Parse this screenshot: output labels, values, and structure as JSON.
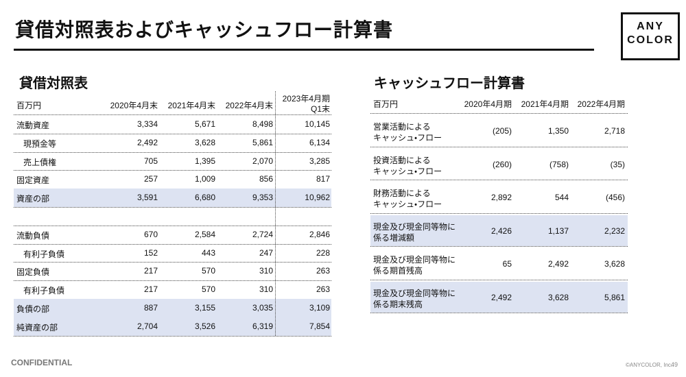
{
  "header": {
    "title": "貸借対照表およびキャッシュフロー計算書",
    "logo": [
      "ANY",
      "COLOR"
    ]
  },
  "balance_sheet": {
    "title": "貸借対照表",
    "columns": [
      "百万円",
      "2020年4月末",
      "2021年4月末",
      "2022年4月末",
      [
        "2023年4月期",
        "Q1末"
      ]
    ],
    "groups": [
      [
        {
          "cells": [
            "流動資産",
            "3,334",
            "5,671",
            "8,498",
            "10,145"
          ]
        },
        {
          "cells": [
            "現預金等",
            "2,492",
            "3,628",
            "5,861",
            "6,134"
          ],
          "indent": true
        },
        {
          "cells": [
            "売上債権",
            "705",
            "1,395",
            "2,070",
            "3,285"
          ],
          "indent": true
        },
        {
          "cells": [
            "固定資産",
            "257",
            "1,009",
            "856",
            "817"
          ]
        },
        {
          "cells": [
            "資産の部",
            "3,591",
            "6,680",
            "9,353",
            "10,962"
          ],
          "highlight": true
        }
      ],
      [
        {
          "cells": [
            "流動負債",
            "670",
            "2,584",
            "2,724",
            "2,846"
          ]
        },
        {
          "cells": [
            "有利子負債",
            "152",
            "443",
            "247",
            "228"
          ],
          "indent": true
        },
        {
          "cells": [
            "固定負債",
            "217",
            "570",
            "310",
            "263"
          ]
        },
        {
          "cells": [
            "有利子負債",
            "217",
            "570",
            "310",
            "263"
          ],
          "indent": true
        },
        {
          "cells": [
            "負債の部",
            "887",
            "3,155",
            "3,035",
            "3,109"
          ],
          "highlight": true
        },
        {
          "cells": [
            "純資産の部",
            "2,704",
            "3,526",
            "6,319",
            "7,854"
          ],
          "highlight": true
        }
      ]
    ]
  },
  "cash_flow": {
    "title": "キャッシュフロー計算書",
    "columns": [
      "百万円",
      "2020年4月期",
      "2021年4月期",
      "2022年4月期"
    ],
    "rows": [
      {
        "label": [
          "営業活動による",
          "キャッシュ・フロー"
        ],
        "values": [
          "(205)",
          "1,350",
          "2,718"
        ]
      },
      {
        "label": [
          "投資活動による",
          "キャッシュ・フロー"
        ],
        "values": [
          "(260)",
          "(758)",
          "(35)"
        ]
      },
      {
        "label": [
          "財務活動による",
          "キャッシュ・フロー"
        ],
        "values": [
          "2,892",
          "544",
          "(456)"
        ]
      },
      {
        "label": [
          "現金及び現金同等物に",
          "係る増減額"
        ],
        "values": [
          "2,426",
          "1,137",
          "2,232"
        ],
        "highlight": true
      },
      {
        "label": [
          "現金及び現金同等物に",
          "係る期首残高"
        ],
        "values": [
          "65",
          "2,492",
          "3,628"
        ]
      },
      {
        "label": [
          "現金及び現金同等物に",
          "係る期末残高"
        ],
        "values": [
          "2,492",
          "3,628",
          "5,861"
        ],
        "highlight": true
      }
    ]
  },
  "footer": {
    "confidential": "CONFIDENTIAL",
    "copyright": "©ANYCOLOR, Inc.",
    "page": "49"
  }
}
